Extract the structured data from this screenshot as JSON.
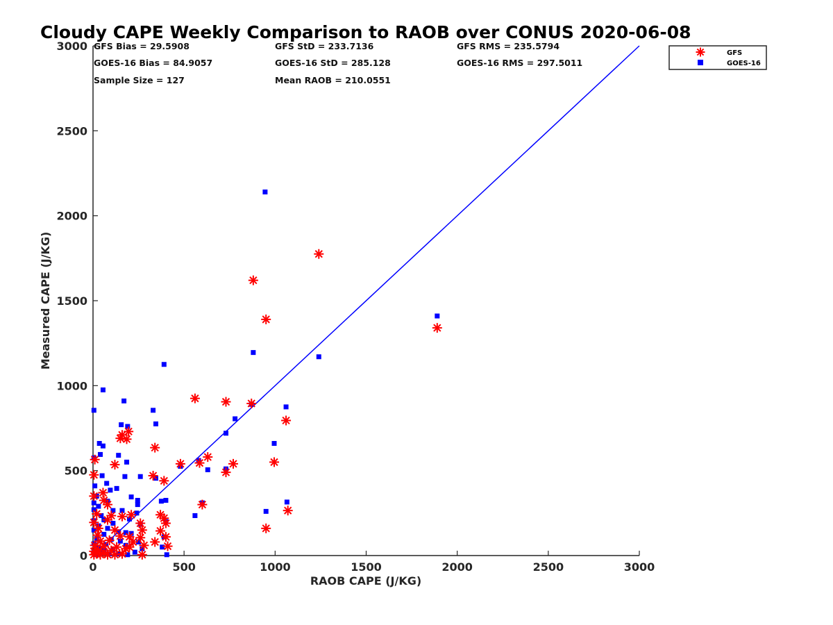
{
  "chart_data": {
    "type": "scatter",
    "title": "Cloudy CAPE Weekly Comparison to RAOB over CONUS 2020-06-08",
    "xlabel": "RAOB CAPE (J/KG)",
    "ylabel": "Measured CAPE (J/KG)",
    "xlim": [
      0,
      3000
    ],
    "ylim": [
      0,
      3000
    ],
    "xticks": [
      "0",
      "500",
      "1000",
      "1500",
      "2000",
      "2500",
      "3000"
    ],
    "yticks": [
      "0",
      "500",
      "1000",
      "1500",
      "2000",
      "2500",
      "3000"
    ],
    "grid": false,
    "legend_position": "top-right",
    "reference_line": {
      "x": [
        0,
        3000
      ],
      "y": [
        0,
        3000
      ],
      "color": "#0000ff"
    },
    "stats": {
      "gfs_bias": "GFS Bias = 29.5908",
      "gfs_std": "GFS StD = 233.7136",
      "gfs_rms": "GFS RMS = 235.5794",
      "goes_bias": "GOES-16 Bias = 84.9057",
      "goes_std": "GOES-16 StD = 285.128",
      "goes_rms": "GOES-16 RMS = 297.5011",
      "sample_size": "Sample Size = 127",
      "mean_raob": "Mean RAOB = 210.0551"
    },
    "series": [
      {
        "name": "GFS",
        "marker": "asterisk",
        "color": "#ff0000",
        "points": [
          [
            1240,
            1775
          ],
          [
            880,
            1620
          ],
          [
            950,
            1390
          ],
          [
            1890,
            1340
          ],
          [
            560,
            925
          ],
          [
            730,
            905
          ],
          [
            870,
            895
          ],
          [
            1060,
            795
          ],
          [
            160,
            710
          ],
          [
            195,
            730
          ],
          [
            150,
            690
          ],
          [
            185,
            685
          ],
          [
            340,
            635
          ],
          [
            10,
            565
          ],
          [
            120,
            535
          ],
          [
            480,
            540
          ],
          [
            585,
            545
          ],
          [
            630,
            580
          ],
          [
            770,
            540
          ],
          [
            995,
            550
          ],
          [
            730,
            490
          ],
          [
            5,
            475
          ],
          [
            330,
            470
          ],
          [
            390,
            440
          ],
          [
            55,
            370
          ],
          [
            5,
            350
          ],
          [
            60,
            325
          ],
          [
            80,
            300
          ],
          [
            600,
            300
          ],
          [
            1070,
            265
          ],
          [
            20,
            245
          ],
          [
            100,
            235
          ],
          [
            160,
            230
          ],
          [
            210,
            240
          ],
          [
            370,
            240
          ],
          [
            390,
            220
          ],
          [
            5,
            195
          ],
          [
            80,
            210
          ],
          [
            260,
            190
          ],
          [
            400,
            190
          ],
          [
            950,
            160
          ],
          [
            30,
            160
          ],
          [
            120,
            150
          ],
          [
            270,
            150
          ],
          [
            370,
            145
          ],
          [
            25,
            120
          ],
          [
            150,
            115
          ],
          [
            200,
            110
          ],
          [
            260,
            105
          ],
          [
            400,
            110
          ],
          [
            40,
            85
          ],
          [
            90,
            90
          ],
          [
            220,
            80
          ],
          [
            340,
            80
          ],
          [
            10,
            60
          ],
          [
            60,
            55
          ],
          [
            130,
            50
          ],
          [
            200,
            50
          ],
          [
            280,
            60
          ],
          [
            410,
            55
          ],
          [
            5,
            25
          ],
          [
            30,
            30
          ],
          [
            60,
            20
          ],
          [
            100,
            30
          ],
          [
            180,
            40
          ],
          [
            5,
            5
          ],
          [
            40,
            5
          ],
          [
            80,
            5
          ],
          [
            120,
            5
          ],
          [
            160,
            10
          ],
          [
            20,
            10
          ],
          [
            270,
            5
          ]
        ]
      },
      {
        "name": "GOES-16",
        "marker": "square",
        "color": "#0000ff",
        "points": [
          [
            945,
            2140
          ],
          [
            1890,
            1410
          ],
          [
            880,
            1195
          ],
          [
            1240,
            1170
          ],
          [
            390,
            1125
          ],
          [
            55,
            975
          ],
          [
            5,
            855
          ],
          [
            170,
            910
          ],
          [
            330,
            855
          ],
          [
            870,
            890
          ],
          [
            1060,
            875
          ],
          [
            780,
            805
          ],
          [
            155,
            770
          ],
          [
            190,
            760
          ],
          [
            345,
            775
          ],
          [
            730,
            720
          ],
          [
            35,
            660
          ],
          [
            55,
            645
          ],
          [
            995,
            660
          ],
          [
            40,
            595
          ],
          [
            140,
            590
          ],
          [
            5,
            575
          ],
          [
            185,
            550
          ],
          [
            580,
            560
          ],
          [
            480,
            525
          ],
          [
            630,
            505
          ],
          [
            730,
            510
          ],
          [
            50,
            470
          ],
          [
            175,
            465
          ],
          [
            260,
            465
          ],
          [
            345,
            455
          ],
          [
            75,
            425
          ],
          [
            10,
            410
          ],
          [
            130,
            395
          ],
          [
            95,
            385
          ],
          [
            210,
            345
          ],
          [
            20,
            350
          ],
          [
            5,
            310
          ],
          [
            245,
            325
          ],
          [
            375,
            320
          ],
          [
            400,
            325
          ],
          [
            1065,
            315
          ],
          [
            600,
            310
          ],
          [
            80,
            320
          ],
          [
            245,
            300
          ],
          [
            30,
            290
          ],
          [
            5,
            270
          ],
          [
            110,
            265
          ],
          [
            160,
            265
          ],
          [
            240,
            250
          ],
          [
            950,
            260
          ],
          [
            560,
            235
          ],
          [
            45,
            235
          ],
          [
            60,
            210
          ],
          [
            5,
            205
          ],
          [
            200,
            215
          ],
          [
            400,
            200
          ],
          [
            110,
            190
          ],
          [
            260,
            185
          ],
          [
            30,
            175
          ],
          [
            80,
            160
          ],
          [
            5,
            150
          ],
          [
            140,
            140
          ],
          [
            180,
            135
          ],
          [
            60,
            125
          ],
          [
            210,
            130
          ],
          [
            390,
            110
          ],
          [
            20,
            100
          ],
          [
            100,
            95
          ],
          [
            150,
            85
          ],
          [
            250,
            80
          ],
          [
            5,
            70
          ],
          [
            70,
            65
          ],
          [
            180,
            60
          ],
          [
            380,
            50
          ],
          [
            30,
            45
          ],
          [
            110,
            35
          ],
          [
            270,
            40
          ],
          [
            5,
            20
          ],
          [
            50,
            15
          ],
          [
            90,
            10
          ],
          [
            190,
            5
          ],
          [
            405,
            5
          ],
          [
            20,
            5
          ],
          [
            140,
            10
          ],
          [
            60,
            30
          ],
          [
            230,
            20
          ]
        ]
      }
    ]
  }
}
